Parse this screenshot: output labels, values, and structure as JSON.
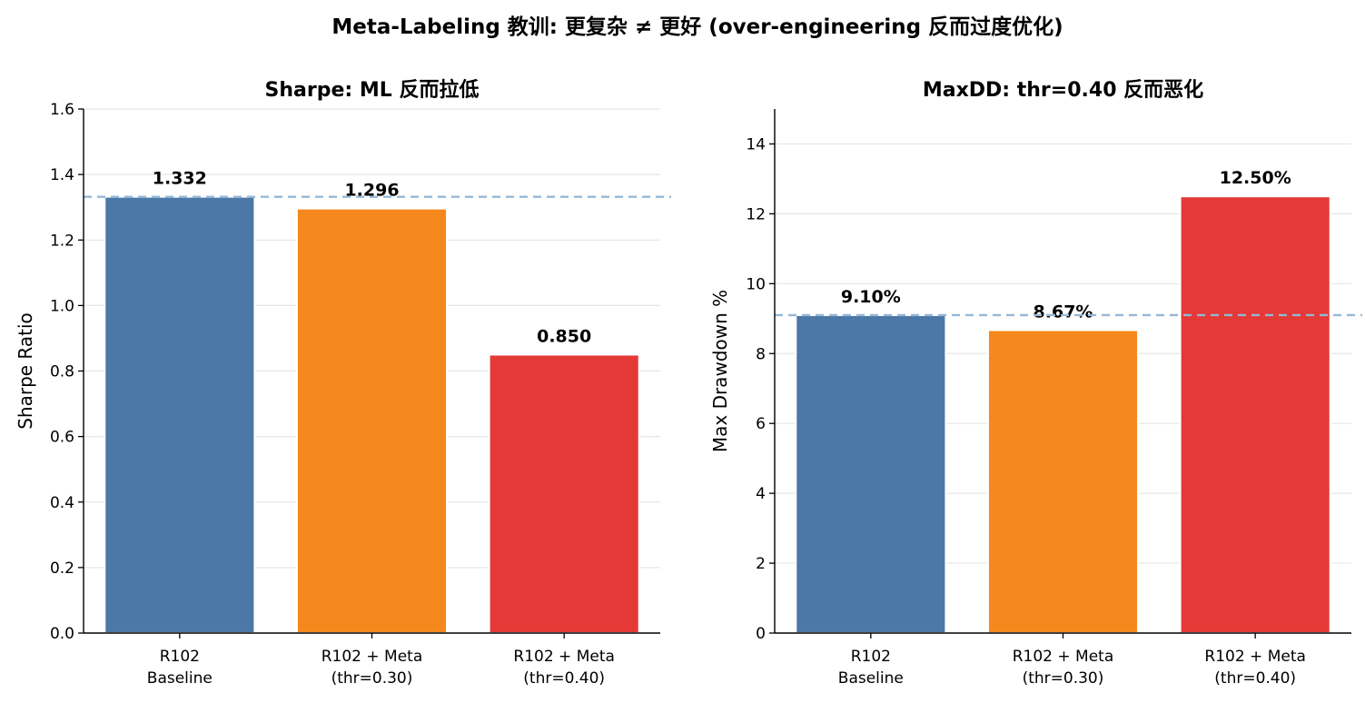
{
  "figure": {
    "suptitle": "Meta-Labeling 教训: 更复杂 ≠ 更好 (over-engineering 反而过度优化)"
  },
  "chart_data": [
    {
      "type": "bar",
      "title": "Sharpe: ML 反而拉低",
      "xlabel": "",
      "ylabel": "Sharpe Ratio",
      "categories": [
        [
          "R102",
          "Baseline"
        ],
        [
          "R102 + Meta",
          "(thr=0.30)"
        ],
        [
          "R102 + Meta",
          "(thr=0.40)"
        ]
      ],
      "values": [
        1.332,
        1.296,
        0.85
      ],
      "value_labels": [
        "1.332",
        "1.296",
        "0.850"
      ],
      "colors": [
        "#4c78a8",
        "#f5881c",
        "#e43936"
      ],
      "baseline_line": 1.332,
      "ylim": [
        0,
        1.6
      ],
      "yticks": [
        "0.0",
        "0.2",
        "0.4",
        "0.6",
        "0.8",
        "1.0",
        "1.2",
        "1.4",
        "1.6"
      ],
      "ytick_values": [
        0,
        0.2,
        0.4,
        0.6,
        0.8,
        1.0,
        1.2,
        1.4,
        1.6
      ],
      "grid": "y"
    },
    {
      "type": "bar",
      "title": "MaxDD: thr=0.40 反而恶化",
      "xlabel": "",
      "ylabel": "Max Drawdown %",
      "categories": [
        [
          "R102",
          "Baseline"
        ],
        [
          "R102 + Meta",
          "(thr=0.30)"
        ],
        [
          "R102 + Meta",
          "(thr=0.40)"
        ]
      ],
      "values": [
        9.1,
        8.67,
        12.5
      ],
      "value_labels": [
        "9.10%",
        "8.67%",
        "12.50%"
      ],
      "colors": [
        "#4c78a8",
        "#f5881c",
        "#e43936"
      ],
      "baseline_line": 9.1,
      "ylim": [
        0,
        15
      ],
      "yticks": [
        "0",
        "2",
        "4",
        "6",
        "8",
        "10",
        "12",
        "14"
      ],
      "ytick_values": [
        0,
        2,
        4,
        6,
        8,
        10,
        12,
        14
      ],
      "grid": "y"
    }
  ]
}
